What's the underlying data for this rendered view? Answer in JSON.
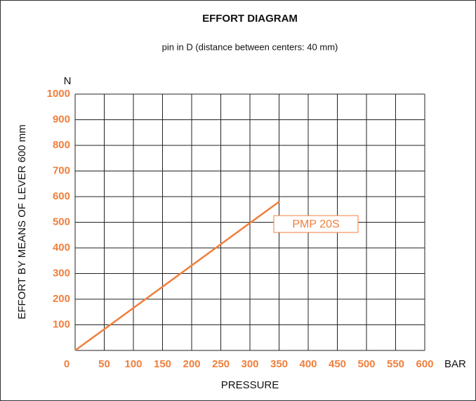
{
  "chart_data": {
    "type": "line",
    "title": "EFFORT DIAGRAM",
    "subtitle": "pin in D (distance between centers: 40 mm)",
    "y_label": "EFFORT BY MEANS OF LEVER 600 mm",
    "x_label": "PRESSURE",
    "y_unit": "N",
    "x_unit": "BAR",
    "x": [
      0,
      350
    ],
    "series": [
      {
        "name": "PMP 20S",
        "color": "#f07f3c",
        "values": [
          0,
          580
        ]
      }
    ],
    "xlim": [
      0,
      600
    ],
    "xticks": [
      0,
      50,
      100,
      150,
      200,
      250,
      300,
      350,
      400,
      450,
      500,
      550,
      600
    ],
    "ylim": [
      0,
      1000
    ],
    "yticks": [
      100,
      200,
      300,
      400,
      500,
      600,
      700,
      800,
      900,
      1000
    ],
    "grid": true,
    "tick_color": "#f07f3c"
  }
}
